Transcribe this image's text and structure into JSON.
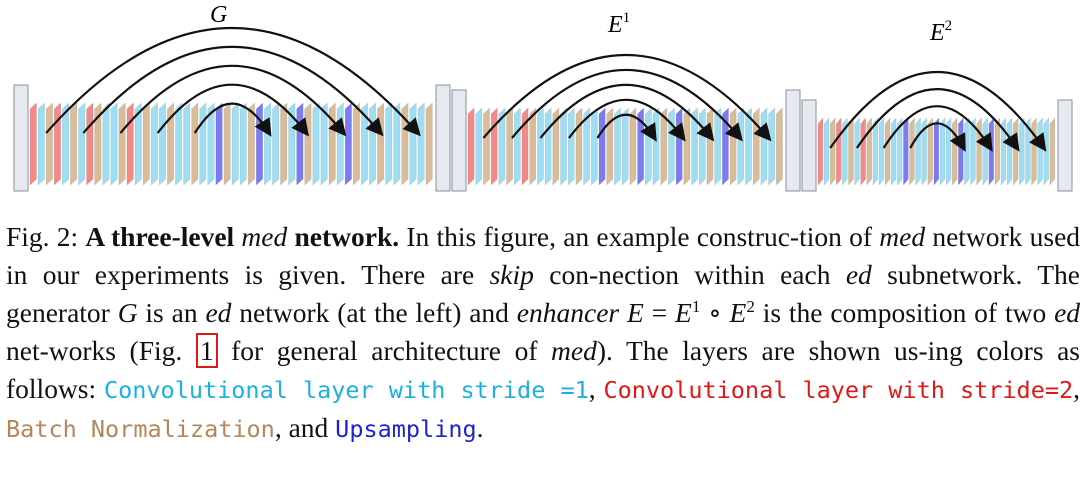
{
  "figure": {
    "subnetworks": [
      {
        "label": "G",
        "sup": "",
        "layers": [
          "c2",
          "c1",
          "bn",
          "c2",
          "c1",
          "bn",
          "c1",
          "c2",
          "bn",
          "c1",
          "c1",
          "bn",
          "c2",
          "c1",
          "bn",
          "c1",
          "c1",
          "bn",
          "c1",
          "c1",
          "bn",
          "c1",
          "c1",
          "up",
          "bn",
          "c1",
          "c1",
          "bn",
          "up",
          "c1",
          "c1",
          "bn",
          "c1",
          "up",
          "bn",
          "c1",
          "c1",
          "bn",
          "c1",
          "up",
          "bn",
          "c1",
          "c1",
          "bn",
          "c1",
          "c1",
          "bn",
          "c1",
          "c1",
          "bn"
        ]
      },
      {
        "label": "E",
        "sup": "1",
        "layers": [
          "c2",
          "c1",
          "bn",
          "c2",
          "c1",
          "bn",
          "c1",
          "c2",
          "bn",
          "c1",
          "c1",
          "bn",
          "c1",
          "c1",
          "bn",
          "c1",
          "c1",
          "up",
          "bn",
          "c1",
          "c1",
          "bn",
          "up",
          "c1",
          "c1",
          "bn",
          "c1",
          "up",
          "bn",
          "c1",
          "c1",
          "bn",
          "c1",
          "up",
          "bn",
          "c1",
          "c1",
          "bn",
          "c1",
          "c1",
          "bn"
        ]
      },
      {
        "label": "E",
        "sup": "2",
        "layers": [
          "c2",
          "c1",
          "bn",
          "c2",
          "c1",
          "bn",
          "c1",
          "c2",
          "bn",
          "c1",
          "c1",
          "bn",
          "c1",
          "c1",
          "up",
          "bn",
          "c1",
          "c1",
          "bn",
          "up",
          "c1",
          "c1",
          "bn",
          "up",
          "c1",
          "c1",
          "bn",
          "c1",
          "up",
          "bn",
          "c1",
          "c1",
          "bn",
          "c1",
          "c1",
          "bn",
          "c1",
          "c1",
          "bn"
        ]
      }
    ]
  },
  "colors": {
    "conv_stride1": "#9fdef2",
    "conv_stride2": "#f28a8a",
    "batch_norm": "#d9bc9a",
    "upsampling": "#7c7cf0",
    "text_conv_stride1": "#1ab0e0",
    "text_conv_stride2": "#e01818",
    "text_batch_norm": "#b4865a",
    "text_upsampling": "#1f1fd6"
  },
  "caption": {
    "fig_label": "Fig. 2:",
    "bold_title": "A three-level",
    "bold_title_italic": "med",
    "bold_title_end": "network.",
    "t1": "In this figure, an example construc-tion of",
    "i1": "med",
    "t2": "network used in our experiments is given. There are",
    "i2": "skip",
    "t3": "con-nection within each",
    "i3": "ed",
    "t4": "subnetwork. The generator",
    "m_G": "G",
    "t5": "is an",
    "i4": "ed",
    "t6": "network (at the left) and",
    "i5": "enhancer",
    "m_E": "E",
    "m_eq": "=",
    "m_E1": "E",
    "m_sup1": "1",
    "m_circ": "∘",
    "m_E2": "E",
    "m_sup2": "2",
    "t7": "is the composition of two",
    "i6": "ed",
    "t8": "net-works (Fig.",
    "figref": "1",
    "t9": "for general architecture of",
    "i7": "med",
    "t10": "). The layers are shown us-ing colors as follows:",
    "legend_conv1": "Convolutional layer with stride =1",
    "comma1": ",",
    "legend_conv2": "Convolutional layer with stride=2",
    "comma2": ",",
    "legend_bn": "Batch Normalization",
    "t11": ", and",
    "legend_up": "Upsampling",
    "period": "."
  }
}
